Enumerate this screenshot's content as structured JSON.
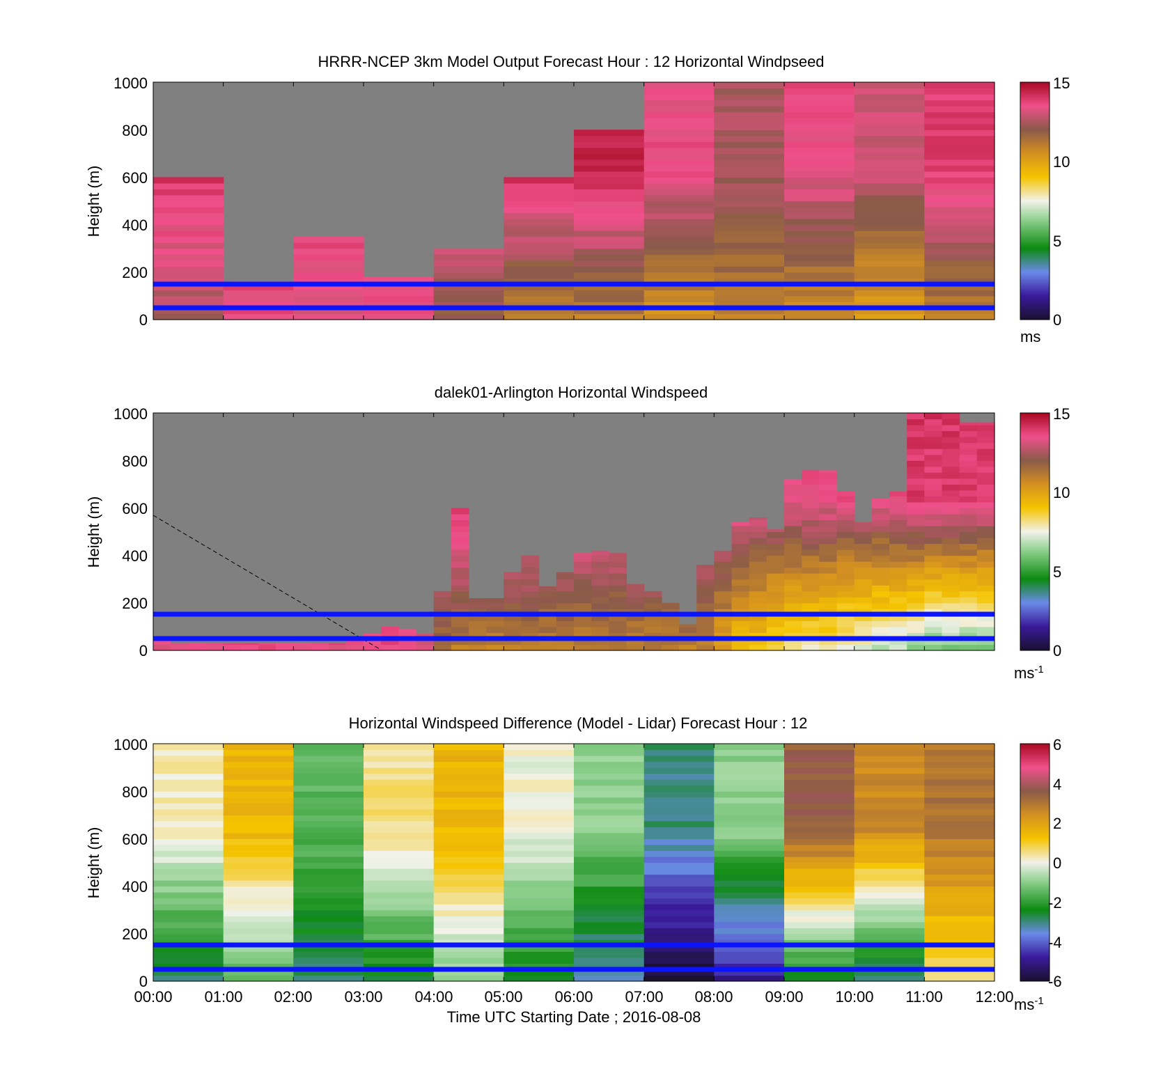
{
  "x_axis": {
    "label": "Time UTC  Starting Date ; 2016-08-08",
    "ticks": [
      "00:00",
      "01:00",
      "02:00",
      "03:00",
      "04:00",
      "05:00",
      "06:00",
      "07:00",
      "08:00",
      "09:00",
      "10:00",
      "11:00",
      "12:00"
    ]
  },
  "chart_data": [
    {
      "type": "heatmap",
      "title": "HRRR-NCEP 3km Model Output   Forecast Hour : 12 Horizontal Windpseed",
      "ylabel": "Height (m)",
      "ylim": [
        0,
        1000
      ],
      "yticks": [
        0,
        200,
        400,
        600,
        800,
        1000
      ],
      "xlim": [
        "00:00",
        "12:00"
      ],
      "colorbar": {
        "label": "ms",
        "exp": "",
        "range": [
          0,
          15
        ],
        "ticks": [
          0,
          5,
          10,
          15
        ]
      },
      "reference_lines_m": [
        50,
        150
      ],
      "columns": [
        {
          "time": "00:00",
          "top": 600,
          "low": 12.5,
          "high": 14.2
        },
        {
          "time": "01:00",
          "top": 160,
          "low": 13.5,
          "high": 14.0
        },
        {
          "time": "02:00",
          "top": 350,
          "low": 13.0,
          "high": 14.3
        },
        {
          "time": "03:00",
          "top": 180,
          "low": 13.5,
          "high": 14.3
        },
        {
          "time": "04:00",
          "top": 300,
          "low": 12.0,
          "high": 14.0
        },
        {
          "time": "05:00",
          "top": 600,
          "low": 11.0,
          "high": 14.2
        },
        {
          "time": "06:00",
          "top": 800,
          "low": 11.0,
          "high": 14.5
        },
        {
          "time": "07:00",
          "top": 1000,
          "low": 10.5,
          "high": 13.5
        },
        {
          "time": "08:00",
          "top": 1000,
          "low": 11.0,
          "high": 12.5
        },
        {
          "time": "09:00",
          "top": 1000,
          "low": 10.5,
          "high": 13.5
        },
        {
          "time": "10:00",
          "top": 1000,
          "low": 10.0,
          "high": 13.0
        },
        {
          "time": "11:00",
          "top": 1000,
          "low": 11.0,
          "high": 13.8
        }
      ]
    },
    {
      "type": "heatmap",
      "title": "dalek01-Arlington  Horizontal Windspeed",
      "ylabel": "Height (m)",
      "ylim": [
        0,
        1000
      ],
      "yticks": [
        0,
        200,
        400,
        600,
        800,
        1000
      ],
      "xlim": [
        "00:00",
        "12:00"
      ],
      "colorbar": {
        "label": "ms",
        "exp": "-1",
        "range": [
          0,
          15
        ],
        "ticks": [
          0,
          5,
          10,
          15
        ]
      },
      "reference_lines_m": [
        50,
        150
      ],
      "columns": [
        {
          "time": "00:00",
          "top": 40,
          "low": 13.5,
          "high": 14.3
        },
        {
          "time": "00:15",
          "top": 30,
          "low": 13.5,
          "high": 14.3
        },
        {
          "time": "00:30",
          "top": 30,
          "low": 13.5,
          "high": 14.3
        },
        {
          "time": "00:45",
          "top": 30,
          "low": 13.5,
          "high": 14.3
        },
        {
          "time": "01:00",
          "top": 30,
          "low": 13.5,
          "high": 14.3
        },
        {
          "time": "01:15",
          "top": 30,
          "low": 13.5,
          "high": 14.3
        },
        {
          "time": "01:30",
          "top": 30,
          "low": 13.5,
          "high": 14.3
        },
        {
          "time": "01:45",
          "top": 30,
          "low": 13.5,
          "high": 14.3
        },
        {
          "time": "02:00",
          "top": 30,
          "low": 13.5,
          "high": 14.3
        },
        {
          "time": "02:15",
          "top": 30,
          "low": 13.5,
          "high": 14.3
        },
        {
          "time": "02:30",
          "top": 30,
          "low": 13.5,
          "high": 14.3
        },
        {
          "time": "02:45",
          "top": 50,
          "low": 13.5,
          "high": 14.3
        },
        {
          "time": "03:00",
          "top": 70,
          "low": 13.5,
          "high": 14.3
        },
        {
          "time": "03:15",
          "top": 100,
          "low": 13.5,
          "high": 14.3
        },
        {
          "time": "03:30",
          "top": 90,
          "low": 13.5,
          "high": 14.3
        },
        {
          "time": "03:45",
          "top": 70,
          "low": 13.0,
          "high": 14.3
        },
        {
          "time": "04:00",
          "top": 250,
          "low": 11.5,
          "high": 14.3
        },
        {
          "time": "04:15",
          "top": 600,
          "low": 11.0,
          "high": 14.3
        },
        {
          "time": "04:30",
          "top": 220,
          "low": 11.0,
          "high": 14.0
        },
        {
          "time": "04:45",
          "top": 220,
          "low": 11.0,
          "high": 14.0
        },
        {
          "time": "05:00",
          "top": 330,
          "low": 11.0,
          "high": 14.0
        },
        {
          "time": "05:15",
          "top": 400,
          "low": 11.0,
          "high": 14.0
        },
        {
          "time": "05:30",
          "top": 270,
          "low": 11.0,
          "high": 14.0
        },
        {
          "time": "05:45",
          "top": 330,
          "low": 11.0,
          "high": 14.0
        },
        {
          "time": "06:00",
          "top": 410,
          "low": 11.0,
          "high": 14.0
        },
        {
          "time": "06:15",
          "top": 420,
          "low": 11.0,
          "high": 14.0
        },
        {
          "time": "06:30",
          "top": 410,
          "low": 11.0,
          "high": 14.0
        },
        {
          "time": "06:45",
          "top": 280,
          "low": 11.0,
          "high": 14.0
        },
        {
          "time": "07:00",
          "top": 250,
          "low": 11.0,
          "high": 14.0
        },
        {
          "time": "07:15",
          "top": 200,
          "low": 11.0,
          "high": 14.0
        },
        {
          "time": "07:30",
          "top": 110,
          "low": 11.0,
          "high": 14.0
        },
        {
          "time": "07:45",
          "top": 360,
          "low": 11.0,
          "high": 14.0
        },
        {
          "time": "08:00",
          "top": 420,
          "low": 10.0,
          "high": 14.0
        },
        {
          "time": "08:15",
          "top": 540,
          "low": 9.0,
          "high": 14.0
        },
        {
          "time": "08:30",
          "top": 560,
          "low": 9.0,
          "high": 13.5
        },
        {
          "time": "08:45",
          "top": 510,
          "low": 8.5,
          "high": 13.5
        },
        {
          "time": "09:00",
          "top": 720,
          "low": 8.0,
          "high": 13.5
        },
        {
          "time": "09:15",
          "top": 760,
          "low": 8.0,
          "high": 13.5
        },
        {
          "time": "09:30",
          "top": 760,
          "low": 8.0,
          "high": 13.5
        },
        {
          "time": "09:45",
          "top": 670,
          "low": 7.5,
          "high": 13.5
        },
        {
          "time": "10:00",
          "top": 540,
          "low": 7.5,
          "high": 13.5
        },
        {
          "time": "10:15",
          "top": 640,
          "low": 7.0,
          "high": 13.5
        },
        {
          "time": "10:30",
          "top": 670,
          "low": 7.0,
          "high": 13.5
        },
        {
          "time": "10:45",
          "top": 1000,
          "low": 6.5,
          "high": 14.0
        },
        {
          "time": "11:00",
          "top": 1000,
          "low": 6.0,
          "high": 14.0
        },
        {
          "time": "11:15",
          "top": 1000,
          "low": 6.0,
          "high": 14.0
        },
        {
          "time": "11:30",
          "top": 960,
          "low": 6.0,
          "high": 14.0
        },
        {
          "time": "11:45",
          "top": 960,
          "low": 6.0,
          "high": 14.0
        }
      ]
    },
    {
      "type": "heatmap",
      "title": "Horizontal Windspeed Difference (Model - Lidar) Forecast Hour : 12",
      "ylabel": "Height (m)",
      "ylim": [
        0,
        1000
      ],
      "yticks": [
        0,
        200,
        400,
        600,
        800,
        1000
      ],
      "xlim": [
        "00:00",
        "12:00"
      ],
      "colorbar": {
        "label": "ms",
        "exp": "-1",
        "range": [
          -6,
          6
        ],
        "ticks": [
          -6,
          -4,
          -2,
          0,
          2,
          4,
          6
        ]
      },
      "reference_lines_m": [
        50,
        150
      ],
      "columns": [
        {
          "time": "00:00",
          "low": -2.8,
          "high": 0.2
        },
        {
          "time": "01:00",
          "low": -1.5,
          "high": 1.5
        },
        {
          "time": "02:00",
          "low": -3.0,
          "high": -1.5
        },
        {
          "time": "03:00",
          "low": -2.5,
          "high": 0.5
        },
        {
          "time": "04:00",
          "low": -1.0,
          "high": 1.5
        },
        {
          "time": "05:00",
          "low": -2.5,
          "high": 0.0
        },
        {
          "time": "06:00",
          "low": -3.5,
          "high": -1.0
        },
        {
          "time": "07:00",
          "low": -6.0,
          "high": -3.0
        },
        {
          "time": "08:00",
          "low": -5.0,
          "high": -1.0
        },
        {
          "time": "09:00",
          "low": -2.5,
          "high": 3.5
        },
        {
          "time": "10:00",
          "low": -3.0,
          "high": 2.5
        },
        {
          "time": "11:00",
          "low": 0.5,
          "high": 3.0
        }
      ]
    }
  ]
}
